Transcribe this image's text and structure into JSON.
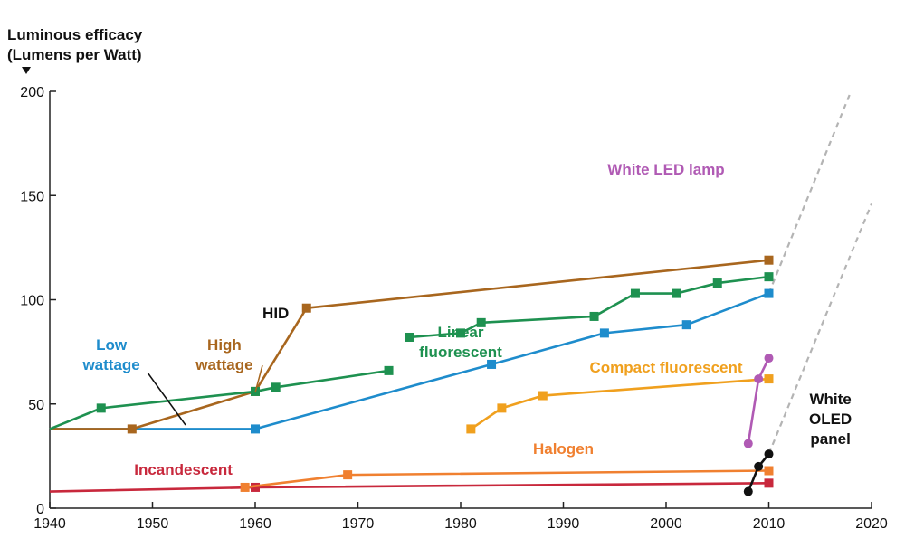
{
  "chart_data": {
    "type": "line",
    "ylabel_line1": "Luminous efficacy",
    "ylabel_line2": "(Lumens per Watt)",
    "xlim": [
      1940,
      2020
    ],
    "ylim": [
      0,
      200
    ],
    "xticks": [
      1940,
      1950,
      1960,
      1970,
      1980,
      1990,
      2000,
      2010,
      2020
    ],
    "yticks": [
      0,
      50,
      100,
      150,
      200
    ],
    "annotations": [
      {
        "lines": [
          "HID"
        ],
        "x": 1962,
        "y": 91,
        "color": "#111111"
      },
      {
        "lines": [
          "White",
          "OLED",
          "panel"
        ],
        "x": 2016,
        "y": 50,
        "color": "#111111"
      }
    ],
    "series": [
      {
        "name": "Incandescent",
        "color": "#c8283c",
        "label_lines": [
          "Incandescent"
        ],
        "label_x": 1953,
        "label_y": 16,
        "x": [
          1940,
          1960,
          2010
        ],
        "y": [
          8,
          10,
          12
        ],
        "markers": [
          false,
          true,
          true
        ]
      },
      {
        "name": "Halogen",
        "color": "#f08030",
        "label_lines": [
          "Halogen"
        ],
        "label_x": 1990,
        "label_y": 26,
        "x": [
          1959,
          1969,
          2010
        ],
        "y": [
          10,
          16,
          18
        ],
        "markers": [
          true,
          true,
          true
        ]
      },
      {
        "name": "Compact fluorescent",
        "color": "#f0a01e",
        "label_lines": [
          "Compact fluorescent"
        ],
        "label_x": 2000,
        "label_y": 65,
        "x": [
          1981,
          1984,
          1988,
          2010
        ],
        "y": [
          38,
          48,
          54,
          62
        ],
        "markers": [
          true,
          true,
          true,
          true
        ]
      },
      {
        "name": "Low wattage",
        "color": "#1e8ccc",
        "label_lines": [
          "Low",
          "wattage"
        ],
        "label_x": 1946,
        "label_y": 76,
        "x": [
          1940,
          1960,
          1983,
          1994,
          2002,
          2010
        ],
        "y": [
          38,
          38,
          69,
          84,
          88,
          103
        ],
        "markers": [
          false,
          true,
          true,
          true,
          true,
          true
        ]
      },
      {
        "name": "High wattage",
        "color": "#a8661e",
        "label_lines": [
          "High",
          "wattage"
        ],
        "label_x": 1957,
        "label_y": 76,
        "x": [
          1940,
          1948,
          1960,
          1965,
          2010
        ],
        "y": [
          38,
          38,
          56,
          96,
          119
        ],
        "markers": [
          false,
          true,
          true,
          true,
          true
        ]
      },
      {
        "name": "Linear fluorescent",
        "color": "#1e9150",
        "label_lines": [
          "Linear",
          "fluorescent"
        ],
        "label_x": 1980,
        "label_y": 82,
        "x": [
          1940,
          1945,
          1960,
          1962,
          1973
        ],
        "y": [
          38,
          48,
          56,
          58,
          66
        ],
        "markers": [
          false,
          true,
          true,
          true,
          true
        ]
      },
      {
        "name": "Linear fluorescent 2",
        "color": "#1e9150",
        "label_lines": [],
        "x": [
          1975,
          1980,
          1982,
          1993,
          1997,
          2001,
          2005,
          2010
        ],
        "y": [
          82,
          84,
          89,
          92,
          103,
          103,
          108,
          111
        ],
        "markers": [
          true,
          true,
          true,
          true,
          true,
          true,
          true,
          true
        ]
      },
      {
        "name": "White LED lamp",
        "color": "#b05ab4",
        "label_lines": [
          "White LED lamp"
        ],
        "label_x": 2000,
        "label_y": 160,
        "x": [
          2008,
          2009,
          2010
        ],
        "y": [
          31,
          62,
          72
        ],
        "markers": [
          true,
          true,
          true
        ],
        "marker_shape": "circle"
      },
      {
        "name": "White OLED panel",
        "color": "#111111",
        "label_lines": [],
        "x": [
          2008,
          2009,
          2010
        ],
        "y": [
          8,
          20,
          26
        ],
        "markers": [
          true,
          true,
          true
        ],
        "marker_shape": "circle"
      }
    ],
    "projections": [
      {
        "x": [
          2010,
          2018
        ],
        "y": [
          103,
          200
        ]
      },
      {
        "x": [
          2010,
          2020
        ],
        "y": [
          26,
          146
        ]
      }
    ]
  }
}
